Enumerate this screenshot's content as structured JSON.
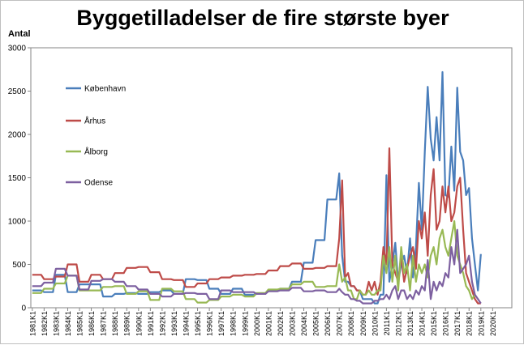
{
  "chart_data": {
    "type": "line",
    "title": "Byggetilladelser de fire største byer",
    "ylabel": "Antal",
    "xlabel": "",
    "ylim": [
      0,
      3000
    ],
    "yticks": [
      0,
      500,
      1000,
      1500,
      2000,
      2500,
      3000
    ],
    "grid": false,
    "legend": "inside-left",
    "x_tick_labels": [
      "1981K1",
      "1982K1",
      "1983K1",
      "1984K1",
      "1985K1",
      "1986K1",
      "1987K1",
      "1988K1",
      "1989K1",
      "1990K1",
      "1991K1",
      "1992K1",
      "1993K1",
      "1994K1",
      "1995K1",
      "1996K1",
      "1997K1",
      "1998K1",
      "1999K1",
      "2000K1",
      "2001K1",
      "2002K1",
      "2003K1",
      "2004K1",
      "2005K1",
      "2006K1",
      "2007K1",
      "2008K1",
      "2009K1",
      "2010K1",
      "2011K1",
      "2012K1",
      "2013K1",
      "2014K1",
      "2015K1",
      "2016K1",
      "2017K1",
      "2018K1",
      "2019K1",
      "2020K1"
    ],
    "series": [
      {
        "name": "København",
        "color": "#4a7ebb",
        "values": [
          200,
          200,
          200,
          200,
          180,
          180,
          180,
          180,
          380,
          380,
          380,
          380,
          180,
          180,
          180,
          180,
          270,
          270,
          270,
          270,
          270,
          270,
          270,
          270,
          130,
          130,
          130,
          130,
          160,
          160,
          160,
          160,
          170,
          170,
          170,
          170,
          160,
          160,
          160,
          160,
          180,
          180,
          180,
          180,
          200,
          200,
          200,
          200,
          160,
          160,
          160,
          160,
          330,
          330,
          330,
          330,
          320,
          320,
          320,
          320,
          220,
          220,
          220,
          220,
          160,
          160,
          160,
          160,
          220,
          220,
          220,
          220,
          150,
          150,
          150,
          150,
          160,
          160,
          160,
          160,
          200,
          200,
          200,
          200,
          220,
          220,
          220,
          220,
          300,
          300,
          300,
          300,
          520,
          520,
          520,
          520,
          780,
          780,
          780,
          780,
          1250,
          1250,
          1250,
          1250,
          1550,
          600,
          300,
          300,
          250,
          250,
          200,
          200,
          100,
          100,
          100,
          100,
          50,
          50,
          150,
          150,
          1530,
          300,
          500,
          750,
          300,
          500,
          600,
          400,
          800,
          350,
          700,
          1440,
          900,
          1800,
          2550,
          1950,
          1700,
          2200,
          1700,
          2720,
          1300,
          1280,
          1860,
          1350,
          2540,
          1800,
          1700,
          1300,
          1380,
          800,
          500,
          200,
          620
        ]
      },
      {
        "name": "Århus",
        "color": "#be4b48",
        "values": [
          380,
          380,
          380,
          380,
          330,
          330,
          330,
          330,
          360,
          360,
          360,
          360,
          500,
          500,
          500,
          500,
          300,
          300,
          300,
          300,
          380,
          380,
          380,
          380,
          330,
          330,
          330,
          330,
          400,
          400,
          400,
          400,
          460,
          460,
          460,
          460,
          470,
          470,
          470,
          470,
          410,
          410,
          410,
          410,
          330,
          330,
          330,
          330,
          320,
          320,
          320,
          320,
          240,
          240,
          240,
          240,
          280,
          280,
          280,
          280,
          330,
          330,
          330,
          330,
          350,
          350,
          350,
          350,
          370,
          370,
          370,
          370,
          380,
          380,
          380,
          380,
          390,
          390,
          390,
          390,
          430,
          430,
          430,
          430,
          480,
          480,
          480,
          480,
          510,
          510,
          510,
          510,
          450,
          450,
          450,
          450,
          460,
          460,
          460,
          460,
          480,
          480,
          480,
          480,
          800,
          1470,
          350,
          400,
          250,
          250,
          200,
          200,
          150,
          150,
          300,
          200,
          300,
          150,
          300,
          700,
          500,
          1840,
          500,
          400,
          300,
          600,
          300,
          450,
          600,
          700,
          450,
          1000,
          800,
          1100,
          600,
          1300,
          1600,
          900,
          1000,
          1400,
          1100,
          1400,
          1000,
          1100,
          1400,
          1500,
          900,
          400,
          300,
          200,
          100,
          50,
          50
        ]
      },
      {
        "name": "Ålborg",
        "color": "#98b954",
        "values": [
          170,
          170,
          170,
          170,
          220,
          220,
          220,
          220,
          280,
          280,
          280,
          280,
          370,
          370,
          370,
          370,
          200,
          200,
          200,
          200,
          200,
          200,
          200,
          200,
          240,
          240,
          240,
          240,
          250,
          250,
          250,
          250,
          160,
          160,
          160,
          160,
          190,
          190,
          190,
          190,
          90,
          90,
          90,
          90,
          220,
          220,
          220,
          220,
          190,
          190,
          190,
          190,
          100,
          100,
          100,
          100,
          60,
          60,
          60,
          60,
          90,
          90,
          90,
          90,
          130,
          130,
          130,
          130,
          150,
          150,
          150,
          150,
          130,
          130,
          130,
          130,
          170,
          170,
          170,
          170,
          210,
          210,
          210,
          210,
          220,
          220,
          220,
          220,
          270,
          270,
          270,
          270,
          300,
          300,
          300,
          300,
          240,
          240,
          240,
          240,
          250,
          250,
          250,
          250,
          500,
          300,
          350,
          200,
          200,
          100,
          100,
          200,
          150,
          150,
          200,
          150,
          150,
          200,
          200,
          600,
          400,
          700,
          300,
          600,
          200,
          700,
          400,
          500,
          200,
          600,
          300,
          500,
          400,
          500,
          350,
          600,
          700,
          500,
          800,
          900,
          700,
          600,
          800,
          1000,
          600,
          500,
          400,
          250,
          200,
          100,
          150
        ]
      },
      {
        "name": "Odense",
        "color": "#7d60a0",
        "values": [
          250,
          250,
          250,
          250,
          290,
          290,
          290,
          290,
          450,
          450,
          450,
          450,
          370,
          370,
          370,
          370,
          210,
          210,
          210,
          210,
          310,
          310,
          310,
          310,
          330,
          330,
          330,
          330,
          300,
          300,
          300,
          300,
          250,
          250,
          250,
          250,
          210,
          210,
          210,
          210,
          160,
          160,
          160,
          160,
          130,
          130,
          130,
          130,
          160,
          160,
          160,
          160,
          170,
          170,
          170,
          170,
          160,
          160,
          160,
          160,
          100,
          100,
          100,
          100,
          200,
          200,
          200,
          200,
          180,
          180,
          180,
          180,
          180,
          180,
          180,
          180,
          160,
          160,
          160,
          160,
          190,
          190,
          190,
          190,
          200,
          200,
          200,
          200,
          230,
          230,
          230,
          230,
          190,
          190,
          190,
          190,
          200,
          200,
          200,
          200,
          180,
          180,
          180,
          180,
          220,
          180,
          150,
          150,
          100,
          100,
          80,
          80,
          50,
          50,
          50,
          50,
          80,
          80,
          100,
          100,
          150,
          100,
          200,
          250,
          100,
          200,
          200,
          100,
          150,
          100,
          200,
          150,
          250,
          200,
          550,
          100,
          300,
          200,
          300,
          250,
          400,
          350,
          700,
          500,
          900,
          400,
          450,
          500,
          600,
          300,
          150,
          100,
          50
        ]
      }
    ]
  }
}
